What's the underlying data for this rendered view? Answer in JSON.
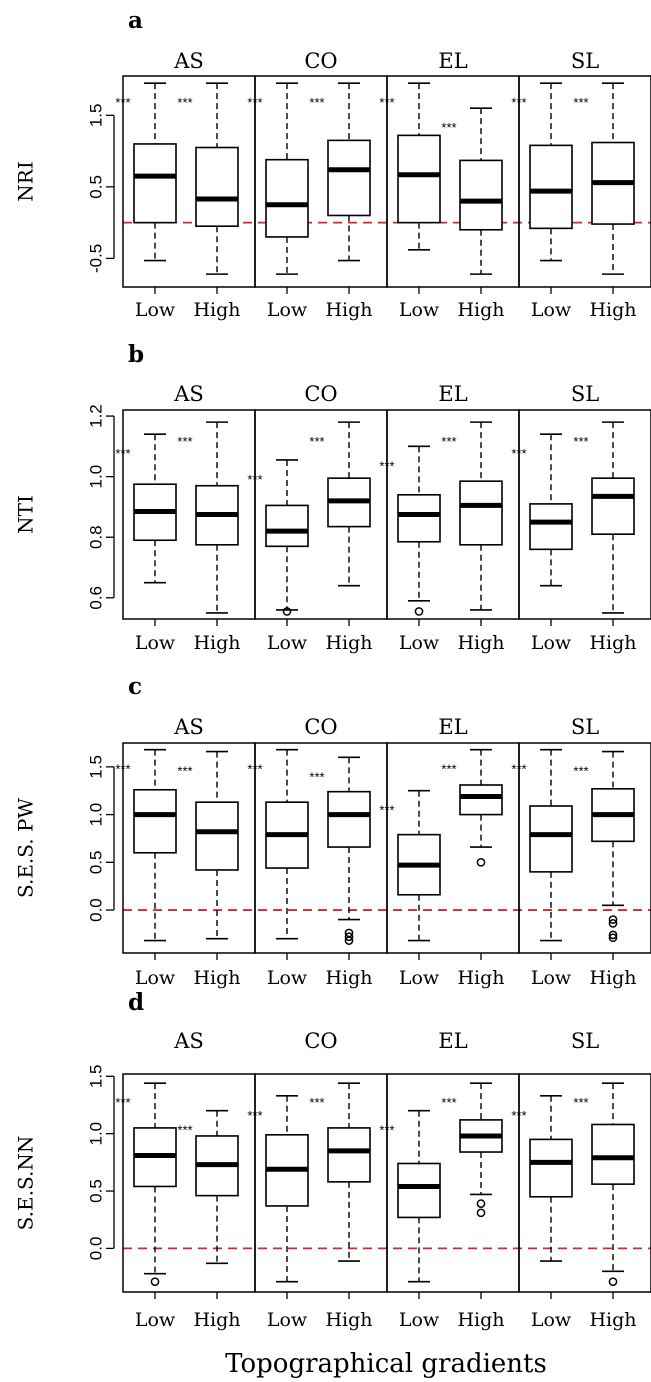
{
  "xlabel": "Topographical gradients",
  "categories": [
    "Low",
    "High"
  ],
  "significance_label": "***",
  "colors": {
    "box": "#000000",
    "reference_line": "#d62728"
  },
  "chart_data": [
    {
      "type": "box",
      "panel_letter": "a",
      "ylabel": "NRI",
      "ylim": [
        -0.9,
        2.05
      ],
      "yticks": [
        -0.5,
        0.5,
        1.5
      ],
      "ytick_labels": [
        "-0.5",
        "0.5",
        "1.5"
      ],
      "reference_line": 0.0,
      "groups": [
        {
          "name": "AS",
          "boxes": [
            {
              "category": "Low",
              "whisker_low": -0.53,
              "q1": 0.0,
              "median": 0.65,
              "q3": 1.1,
              "whisker_high": 1.95,
              "outliers": [],
              "sig": "***"
            },
            {
              "category": "High",
              "whisker_low": -0.72,
              "q1": -0.05,
              "median": 0.33,
              "q3": 1.05,
              "whisker_high": 1.95,
              "outliers": [],
              "sig": "***"
            }
          ]
        },
        {
          "name": "CO",
          "boxes": [
            {
              "category": "Low",
              "whisker_low": -0.72,
              "q1": -0.2,
              "median": 0.25,
              "q3": 0.88,
              "whisker_high": 1.95,
              "outliers": [],
              "sig": "***"
            },
            {
              "category": "High",
              "whisker_low": -0.53,
              "q1": 0.1,
              "median": 0.74,
              "q3": 1.15,
              "whisker_high": 1.95,
              "outliers": [],
              "sig": "***"
            }
          ]
        },
        {
          "name": "EL",
          "boxes": [
            {
              "category": "Low",
              "whisker_low": -0.38,
              "q1": 0.0,
              "median": 0.67,
              "q3": 1.22,
              "whisker_high": 1.95,
              "outliers": [],
              "sig": "***"
            },
            {
              "category": "High",
              "whisker_low": -0.72,
              "q1": -0.1,
              "median": 0.3,
              "q3": 0.87,
              "whisker_high": 1.6,
              "outliers": [],
              "sig": "***"
            }
          ]
        },
        {
          "name": "SL",
          "boxes": [
            {
              "category": "Low",
              "whisker_low": -0.53,
              "q1": -0.08,
              "median": 0.44,
              "q3": 1.08,
              "whisker_high": 1.95,
              "outliers": [],
              "sig": "***"
            },
            {
              "category": "High",
              "whisker_low": -0.72,
              "q1": -0.02,
              "median": 0.56,
              "q3": 1.12,
              "whisker_high": 1.95,
              "outliers": [],
              "sig": "***"
            }
          ]
        }
      ]
    },
    {
      "type": "box",
      "panel_letter": "b",
      "ylabel": "NTI",
      "ylim": [
        0.53,
        1.22
      ],
      "yticks": [
        0.6,
        0.8,
        1.0,
        1.2
      ],
      "ytick_labels": [
        "0.6",
        "0.8",
        "1.0",
        "1.2"
      ],
      "reference_line": null,
      "groups": [
        {
          "name": "AS",
          "boxes": [
            {
              "category": "Low",
              "whisker_low": 0.65,
              "q1": 0.79,
              "median": 0.885,
              "q3": 0.975,
              "whisker_high": 1.14,
              "outliers": [],
              "sig": "***"
            },
            {
              "category": "High",
              "whisker_low": 0.55,
              "q1": 0.775,
              "median": 0.875,
              "q3": 0.97,
              "whisker_high": 1.18,
              "outliers": [],
              "sig": "***"
            }
          ]
        },
        {
          "name": "CO",
          "boxes": [
            {
              "category": "Low",
              "whisker_low": 0.56,
              "q1": 0.77,
              "median": 0.82,
              "q3": 0.905,
              "whisker_high": 1.055,
              "outliers": [
                0.555
              ],
              "sig": "***"
            },
            {
              "category": "High",
              "whisker_low": 0.64,
              "q1": 0.835,
              "median": 0.92,
              "q3": 0.995,
              "whisker_high": 1.18,
              "outliers": [],
              "sig": "***"
            }
          ]
        },
        {
          "name": "EL",
          "boxes": [
            {
              "category": "Low",
              "whisker_low": 0.59,
              "q1": 0.785,
              "median": 0.875,
              "q3": 0.94,
              "whisker_high": 1.1,
              "outliers": [
                0.555
              ],
              "sig": "***"
            },
            {
              "category": "High",
              "whisker_low": 0.56,
              "q1": 0.775,
              "median": 0.905,
              "q3": 0.985,
              "whisker_high": 1.18,
              "outliers": [],
              "sig": "***"
            }
          ]
        },
        {
          "name": "SL",
          "boxes": [
            {
              "category": "Low",
              "whisker_low": 0.64,
              "q1": 0.76,
              "median": 0.85,
              "q3": 0.91,
              "whisker_high": 1.14,
              "outliers": [],
              "sig": "***"
            },
            {
              "category": "High",
              "whisker_low": 0.55,
              "q1": 0.81,
              "median": 0.935,
              "q3": 0.995,
              "whisker_high": 1.18,
              "outliers": [],
              "sig": "***"
            }
          ]
        }
      ]
    },
    {
      "type": "box",
      "panel_letter": "c",
      "ylabel": "S.E.S. PW",
      "ylim": [
        -0.45,
        1.75
      ],
      "yticks": [
        0.0,
        0.5,
        1.0,
        1.5
      ],
      "ytick_labels": [
        "0.0",
        "0.5",
        "1.0",
        "1.5"
      ],
      "reference_line": 0.0,
      "groups": [
        {
          "name": "AS",
          "boxes": [
            {
              "category": "Low",
              "whisker_low": -0.32,
              "q1": 0.6,
              "median": 1.0,
              "q3": 1.26,
              "whisker_high": 1.68,
              "outliers": [],
              "sig": "***"
            },
            {
              "category": "High",
              "whisker_low": -0.3,
              "q1": 0.42,
              "median": 0.82,
              "q3": 1.13,
              "whisker_high": 1.66,
              "outliers": [],
              "sig": "***"
            }
          ]
        },
        {
          "name": "CO",
          "boxes": [
            {
              "category": "Low",
              "whisker_low": -0.3,
              "q1": 0.44,
              "median": 0.79,
              "q3": 1.13,
              "whisker_high": 1.68,
              "outliers": [],
              "sig": "***"
            },
            {
              "category": "High",
              "whisker_low": -0.1,
              "q1": 0.66,
              "median": 1.0,
              "q3": 1.24,
              "whisker_high": 1.6,
              "outliers": [
                -0.24,
                -0.28,
                -0.32
              ],
              "sig": "***"
            }
          ]
        },
        {
          "name": "EL",
          "boxes": [
            {
              "category": "Low",
              "whisker_low": -0.32,
              "q1": 0.16,
              "median": 0.47,
              "q3": 0.79,
              "whisker_high": 1.25,
              "outliers": [],
              "sig": "***"
            },
            {
              "category": "High",
              "whisker_low": 0.66,
              "q1": 1.0,
              "median": 1.19,
              "q3": 1.31,
              "whisker_high": 1.68,
              "outliers": [
                0.5
              ],
              "sig": "***"
            }
          ]
        },
        {
          "name": "SL",
          "boxes": [
            {
              "category": "Low",
              "whisker_low": -0.32,
              "q1": 0.4,
              "median": 0.79,
              "q3": 1.09,
              "whisker_high": 1.68,
              "outliers": [],
              "sig": "***"
            },
            {
              "category": "High",
              "whisker_low": 0.05,
              "q1": 0.72,
              "median": 1.0,
              "q3": 1.27,
              "whisker_high": 1.66,
              "outliers": [
                -0.1,
                -0.14,
                -0.26,
                -0.29
              ],
              "sig": "***"
            }
          ]
        }
      ]
    },
    {
      "type": "box",
      "panel_letter": "d",
      "ylabel": "S.E.S.NN",
      "ylim": [
        -0.38,
        1.52
      ],
      "yticks": [
        0.0,
        0.5,
        1.0,
        1.5
      ],
      "ytick_labels": [
        "0.0",
        "0.5",
        "1.0",
        "1.5"
      ],
      "reference_line": 0.0,
      "groups": [
        {
          "name": "AS",
          "boxes": [
            {
              "category": "Low",
              "whisker_low": -0.22,
              "q1": 0.54,
              "median": 0.81,
              "q3": 1.05,
              "whisker_high": 1.44,
              "outliers": [
                -0.29
              ],
              "sig": "***"
            },
            {
              "category": "High",
              "whisker_low": -0.13,
              "q1": 0.46,
              "median": 0.73,
              "q3": 0.98,
              "whisker_high": 1.2,
              "outliers": [],
              "sig": "***"
            }
          ]
        },
        {
          "name": "CO",
          "boxes": [
            {
              "category": "Low",
              "whisker_low": -0.29,
              "q1": 0.37,
              "median": 0.69,
              "q3": 0.99,
              "whisker_high": 1.33,
              "outliers": [],
              "sig": "***"
            },
            {
              "category": "High",
              "whisker_low": -0.11,
              "q1": 0.58,
              "median": 0.85,
              "q3": 1.05,
              "whisker_high": 1.44,
              "outliers": [],
              "sig": "***"
            }
          ]
        },
        {
          "name": "EL",
          "boxes": [
            {
              "category": "Low",
              "whisker_low": -0.29,
              "q1": 0.27,
              "median": 0.54,
              "q3": 0.74,
              "whisker_high": 1.2,
              "outliers": [],
              "sig": "***"
            },
            {
              "category": "High",
              "whisker_low": 0.47,
              "q1": 0.84,
              "median": 0.98,
              "q3": 1.12,
              "whisker_high": 1.44,
              "outliers": [
                0.39,
                0.31
              ],
              "sig": "***"
            }
          ]
        },
        {
          "name": "SL",
          "boxes": [
            {
              "category": "Low",
              "whisker_low": -0.11,
              "q1": 0.45,
              "median": 0.75,
              "q3": 0.95,
              "whisker_high": 1.33,
              "outliers": [],
              "sig": "***"
            },
            {
              "category": "High",
              "whisker_low": -0.2,
              "q1": 0.56,
              "median": 0.79,
              "q3": 1.08,
              "whisker_high": 1.44,
              "outliers": [
                -0.29
              ],
              "sig": "***"
            }
          ]
        }
      ]
    }
  ]
}
